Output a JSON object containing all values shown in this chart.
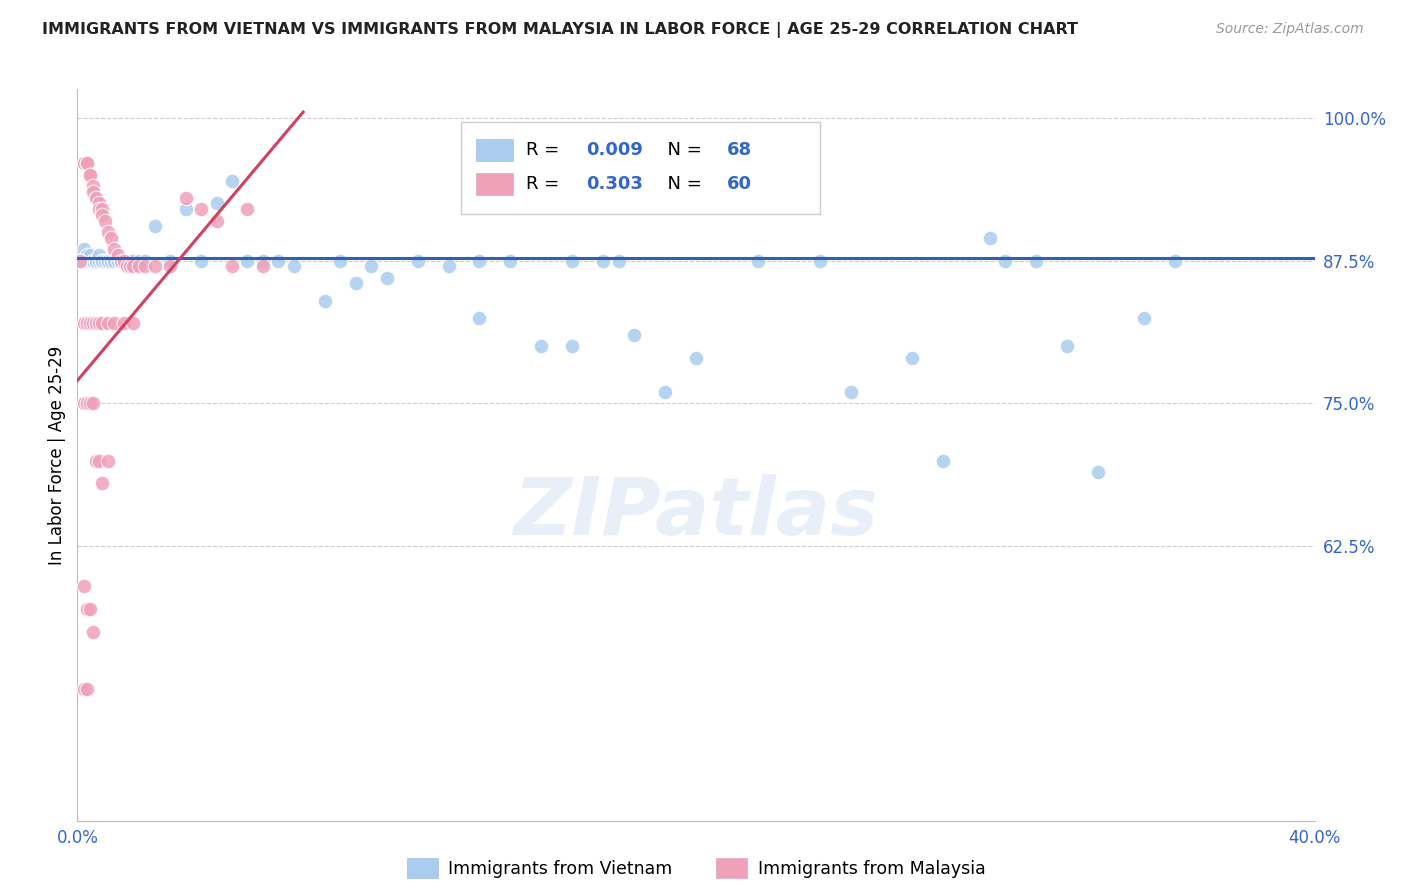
{
  "title": "IMMIGRANTS FROM VIETNAM VS IMMIGRANTS FROM MALAYSIA IN LABOR FORCE | AGE 25-29 CORRELATION CHART",
  "source": "Source: ZipAtlas.com",
  "ylabel": "In Labor Force | Age 25-29",
  "xlim": [
    0.0,
    0.4
  ],
  "ylim": [
    0.385,
    1.025
  ],
  "xticks": [
    0.0,
    0.05,
    0.1,
    0.15,
    0.2,
    0.25,
    0.3,
    0.35,
    0.4
  ],
  "xticklabels": [
    "0.0%",
    "",
    "",
    "",
    "",
    "",
    "",
    "",
    "40.0%"
  ],
  "yticks": [
    0.625,
    0.75,
    0.875,
    1.0
  ],
  "yticklabels": [
    "62.5%",
    "75.0%",
    "87.5%",
    "100.0%"
  ],
  "legend_R1": "0.009",
  "legend_N1": "68",
  "legend_R2": "0.303",
  "legend_N2": "60",
  "vietnam_color": "#aaccee",
  "malaysia_color": "#f0a0b8",
  "vietnam_line_color": "#3060b0",
  "malaysia_line_color": "#d04060",
  "legend_text_color": "#3366cc",
  "title_color": "#222222",
  "axis_color": "#3366cc",
  "watermark": "ZIPatlas",
  "vietnam_x": [
    0.001,
    0.002,
    0.002,
    0.003,
    0.003,
    0.004,
    0.004,
    0.005,
    0.005,
    0.006,
    0.006,
    0.007,
    0.007,
    0.008,
    0.008,
    0.009,
    0.01,
    0.01,
    0.011,
    0.012,
    0.013,
    0.014,
    0.015,
    0.016,
    0.017,
    0.018,
    0.02,
    0.022,
    0.025,
    0.03,
    0.035,
    0.04,
    0.045,
    0.05,
    0.06,
    0.065,
    0.07,
    0.08,
    0.09,
    0.095,
    0.1,
    0.11,
    0.12,
    0.13,
    0.14,
    0.15,
    0.16,
    0.17,
    0.18,
    0.19,
    0.2,
    0.22,
    0.24,
    0.25,
    0.27,
    0.28,
    0.3,
    0.31,
    0.32,
    0.33,
    0.13,
    0.16,
    0.175,
    0.085,
    0.055,
    0.295,
    0.345,
    0.355
  ],
  "vietnam_y": [
    0.875,
    0.875,
    0.885,
    0.875,
    0.88,
    0.875,
    0.88,
    0.875,
    0.875,
    0.875,
    0.875,
    0.875,
    0.88,
    0.875,
    0.875,
    0.875,
    0.875,
    0.875,
    0.875,
    0.875,
    0.875,
    0.875,
    0.875,
    0.875,
    0.875,
    0.875,
    0.875,
    0.875,
    0.905,
    0.875,
    0.92,
    0.875,
    0.925,
    0.945,
    0.875,
    0.875,
    0.87,
    0.84,
    0.855,
    0.87,
    0.86,
    0.875,
    0.87,
    0.825,
    0.875,
    0.8,
    0.8,
    0.875,
    0.81,
    0.76,
    0.79,
    0.875,
    0.875,
    0.76,
    0.79,
    0.7,
    0.875,
    0.875,
    0.8,
    0.69,
    0.875,
    0.875,
    0.875,
    0.875,
    0.875,
    0.895,
    0.825,
    0.875
  ],
  "malaysia_x": [
    0.001,
    0.002,
    0.002,
    0.003,
    0.003,
    0.004,
    0.004,
    0.005,
    0.005,
    0.006,
    0.006,
    0.007,
    0.007,
    0.008,
    0.008,
    0.009,
    0.01,
    0.011,
    0.012,
    0.013,
    0.014,
    0.015,
    0.016,
    0.017,
    0.018,
    0.02,
    0.022,
    0.025,
    0.03,
    0.035,
    0.04,
    0.045,
    0.05,
    0.055,
    0.06,
    0.002,
    0.003,
    0.004,
    0.005,
    0.006,
    0.007,
    0.008,
    0.01,
    0.012,
    0.015,
    0.018,
    0.002,
    0.003,
    0.004,
    0.005,
    0.006,
    0.007,
    0.008,
    0.01,
    0.002,
    0.003,
    0.004,
    0.005,
    0.002,
    0.003
  ],
  "malaysia_y": [
    0.875,
    0.96,
    0.96,
    0.96,
    0.96,
    0.95,
    0.95,
    0.94,
    0.935,
    0.93,
    0.93,
    0.925,
    0.92,
    0.92,
    0.915,
    0.91,
    0.9,
    0.895,
    0.885,
    0.88,
    0.875,
    0.875,
    0.87,
    0.87,
    0.87,
    0.87,
    0.87,
    0.87,
    0.87,
    0.93,
    0.92,
    0.91,
    0.87,
    0.92,
    0.87,
    0.82,
    0.82,
    0.82,
    0.82,
    0.82,
    0.82,
    0.82,
    0.82,
    0.82,
    0.82,
    0.82,
    0.75,
    0.75,
    0.75,
    0.75,
    0.7,
    0.7,
    0.68,
    0.7,
    0.59,
    0.57,
    0.57,
    0.55,
    0.5,
    0.5
  ],
  "vietnam_trendline_x": [
    0.0,
    0.4
  ],
  "vietnam_trendline_y": [
    0.877,
    0.877
  ],
  "malaysia_trendline_x": [
    0.0,
    0.073
  ],
  "malaysia_trendline_y": [
    0.77,
    1.005
  ]
}
